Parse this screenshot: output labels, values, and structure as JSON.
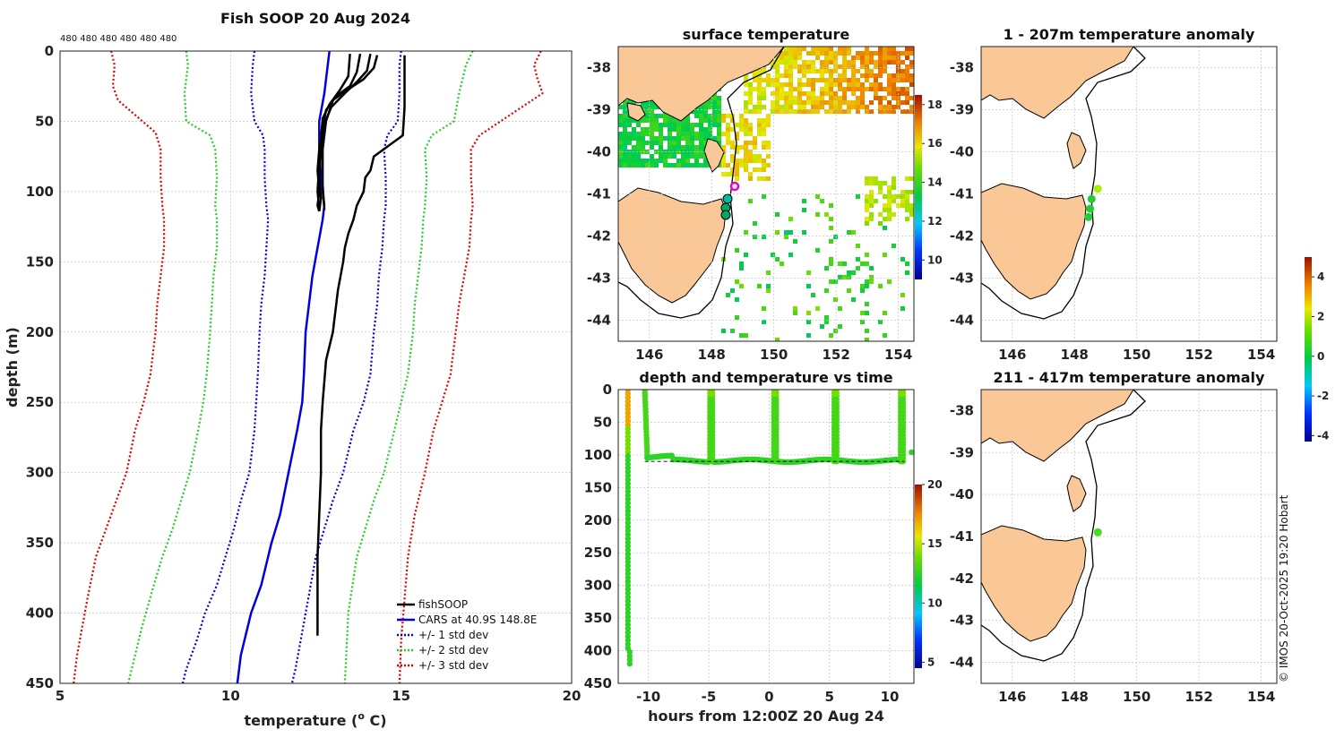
{
  "chart_data": [
    {
      "id": "profile",
      "type": "line",
      "title": "Fish SOOP 20 Aug 2024",
      "xlabel": "temperature (",
      "xlabel_sup": "o",
      "xlabel_tail": " C)",
      "ylabel": "depth (m)",
      "xlim": [
        5,
        20
      ],
      "ylim": [
        450,
        0
      ],
      "xticks": [
        "5",
        "10",
        "15",
        "20"
      ],
      "yticks": [
        "0",
        "50",
        "100",
        "150",
        "200",
        "250",
        "300",
        "350",
        "400",
        "450"
      ],
      "top_labels": "480 480 480 480 480 480",
      "legend": [
        "fishSOOP",
        "CARS at 40.9S 148.8E",
        "+/- 1 std dev",
        "+/- 2 std dev",
        "+/- 3 std dev"
      ],
      "series": [
        {
          "name": "CARS mean",
          "color": "#0000dd",
          "style": "solid",
          "x": [
            12.9,
            12.85,
            12.75,
            12.6,
            12.6,
            12.65,
            12.7,
            12.75,
            12.7,
            12.55,
            12.4,
            12.3,
            12.2,
            12.15,
            12.1,
            11.95,
            11.7,
            11.45,
            11.2,
            10.9,
            10.6,
            10.3,
            10.2
          ],
          "y": [
            0,
            10,
            30,
            50,
            70,
            90,
            100,
            110,
            120,
            140,
            160,
            180,
            200,
            230,
            250,
            270,
            300,
            330,
            350,
            380,
            400,
            430,
            450
          ]
        },
        {
          "name": "-1 std",
          "color": "#0000dd",
          "style": "dotted",
          "x": [
            10.7,
            10.65,
            10.6,
            10.7,
            10.95,
            11,
            11,
            11.05,
            11.1,
            11.05,
            11,
            10.9,
            10.85,
            10.8,
            10.75,
            10.7,
            10.55,
            10.3,
            10.1,
            9.85,
            9.6,
            9.25,
            9.0,
            8.7,
            8.6
          ],
          "y": [
            0,
            10,
            30,
            50,
            60,
            70,
            90,
            110,
            120,
            140,
            160,
            180,
            200,
            230,
            250,
            270,
            300,
            320,
            340,
            360,
            380,
            400,
            420,
            440,
            450
          ]
        },
        {
          "name": "+1 std",
          "color": "#0000dd",
          "style": "dotted",
          "x": [
            15.0,
            14.95,
            14.95,
            14.9,
            14.6,
            14.5,
            14.55,
            14.55,
            14.5,
            14.45,
            14.35,
            14.3,
            14.2,
            14.1,
            13.9,
            13.6,
            13.3,
            13.0,
            12.75,
            12.5,
            12.2,
            11.9,
            11.8
          ],
          "y": [
            0,
            10,
            30,
            50,
            60,
            70,
            90,
            110,
            120,
            140,
            160,
            180,
            200,
            230,
            250,
            270,
            300,
            320,
            340,
            360,
            400,
            440,
            450
          ]
        },
        {
          "name": "-2 std",
          "color": "#22cc22",
          "style": "dotted",
          "x": [
            8.7,
            8.75,
            8.65,
            8.7,
            9.4,
            9.55,
            9.6,
            9.55,
            9.6,
            9.6,
            9.5,
            9.45,
            9.4,
            9.3,
            9.2,
            9.05,
            8.8,
            8.55,
            8.3,
            8.0,
            7.75,
            7.4,
            7.1,
            7.0
          ],
          "y": [
            0,
            10,
            30,
            50,
            60,
            70,
            90,
            110,
            120,
            140,
            160,
            180,
            200,
            230,
            250,
            270,
            300,
            320,
            340,
            360,
            380,
            410,
            440,
            450
          ]
        },
        {
          "name": "+2 std",
          "color": "#22cc22",
          "style": "dotted",
          "x": [
            17.1,
            16.9,
            16.7,
            16.55,
            15.9,
            15.7,
            15.75,
            15.7,
            15.65,
            15.6,
            15.5,
            15.4,
            15.35,
            15.2,
            15.0,
            14.8,
            14.5,
            14.2,
            13.95,
            13.7,
            13.45,
            13.35
          ],
          "y": [
            0,
            10,
            30,
            50,
            60,
            70,
            90,
            110,
            120,
            140,
            160,
            180,
            200,
            230,
            250,
            270,
            300,
            320,
            340,
            360,
            400,
            450
          ]
        },
        {
          "name": "-3 std",
          "color": "#dd0000",
          "style": "dotted",
          "x": [
            6.5,
            6.6,
            6.55,
            6.7,
            7.8,
            7.95,
            7.95,
            8.0,
            8.05,
            8.05,
            7.95,
            7.85,
            7.8,
            7.65,
            7.45,
            7.2,
            6.95,
            6.65,
            6.35,
            6.05,
            5.8,
            5.5,
            5.4
          ],
          "y": [
            0,
            10,
            25,
            35,
            58,
            70,
            90,
            110,
            120,
            140,
            160,
            180,
            200,
            230,
            250,
            270,
            300,
            320,
            340,
            360,
            390,
            430,
            450
          ]
        },
        {
          "name": "+3 std",
          "color": "#dd0000",
          "style": "dotted",
          "x": [
            19.1,
            18.9,
            19.0,
            19.15,
            17.3,
            17.05,
            17.05,
            17.1,
            17.05,
            17.0,
            16.85,
            16.7,
            16.6,
            16.45,
            16.2,
            15.95,
            15.7,
            15.4,
            15.2,
            15.0,
            14.95
          ],
          "y": [
            0,
            10,
            20,
            30,
            60,
            70,
            90,
            110,
            120,
            140,
            160,
            180,
            200,
            230,
            250,
            270,
            300,
            330,
            360,
            420,
            450
          ]
        },
        {
          "name": "fishSOOP deep",
          "color": "#000000",
          "style": "solid",
          "x": [
            15.1,
            15.1,
            15.1,
            15.05,
            14.2,
            14.1,
            13.95,
            13.9,
            13.7,
            13.6,
            13.45,
            13.35,
            13.3,
            13.15,
            13.0,
            12.8,
            12.7,
            12.65,
            12.65,
            12.6,
            12.55,
            12.55,
            12.55,
            12.55,
            12.55
          ],
          "y": [
            3,
            20,
            40,
            60,
            75,
            85,
            90,
            100,
            110,
            120,
            130,
            140,
            150,
            170,
            200,
            220,
            250,
            270,
            300,
            330,
            360,
            380,
            400,
            410,
            416
          ]
        },
        {
          "name": "fishSOOP casts",
          "color": "#000000",
          "style": "solid",
          "x": [
            13.8,
            13.7,
            13.5,
            13.1,
            12.8,
            12.7,
            12.6,
            12.55,
            12.6,
            12.55,
            12.6
          ],
          "y": [
            2,
            15,
            25,
            32,
            42,
            55,
            70,
            85,
            100,
            110,
            114
          ]
        },
        {
          "name": "fishSOOP casts 2",
          "color": "#000000",
          "style": "solid",
          "x": [
            14.1,
            14.0,
            13.7,
            13.35,
            12.95,
            12.75,
            12.65,
            12.6,
            12.65,
            12.6
          ],
          "y": [
            2,
            14,
            22,
            30,
            40,
            52,
            70,
            90,
            105,
            114
          ]
        },
        {
          "name": "fishSOOP casts 3",
          "color": "#000000",
          "style": "solid",
          "x": [
            13.5,
            13.45,
            13.2,
            12.9,
            12.7,
            12.65,
            12.6,
            12.55,
            12.6
          ],
          "y": [
            2,
            18,
            28,
            38,
            48,
            62,
            80,
            100,
            112
          ]
        },
        {
          "name": "fishSOOP casts 4",
          "color": "#000000",
          "style": "solid",
          "x": [
            14.3,
            14.2,
            13.9,
            13.4,
            13.0,
            12.8,
            12.7,
            12.7,
            12.75
          ],
          "y": [
            3,
            12,
            20,
            28,
            35,
            50,
            70,
            95,
            113
          ]
        }
      ]
    },
    {
      "id": "sst",
      "type": "heatmap",
      "title": "surface temperature",
      "xlim": [
        145,
        154.5
      ],
      "ylim": [
        -44.5,
        -37.5
      ],
      "xticks": [
        "146",
        "148",
        "150",
        "152",
        "154"
      ],
      "yticks": [
        "-38",
        "-39",
        "-40",
        "-41",
        "-42",
        "-43",
        "-44"
      ],
      "colorbar_ticks": [
        "18",
        "16",
        "14",
        "12",
        "10"
      ],
      "colorbar_range": [
        9,
        18.5
      ]
    },
    {
      "id": "timeseries",
      "type": "scatter",
      "title": "depth and temperature vs time",
      "xlabel": "hours from 12:00Z 20 Aug 24",
      "xlim": [
        -12.5,
        12
      ],
      "ylim": [
        450,
        0
      ],
      "xticks": [
        "-10",
        "-5",
        "0",
        "5",
        "10"
      ],
      "yticks": [
        "0",
        "50",
        "100",
        "150",
        "200",
        "250",
        "300",
        "350",
        "400",
        "450"
      ],
      "colorbar_ticks": [
        "20",
        "15",
        "10",
        "5"
      ],
      "colorbar_range": [
        4.5,
        20
      ],
      "points_hours": [
        -11.7,
        -10.2,
        -4.8,
        0.5,
        5.5,
        11
      ],
      "points_depth": [
        420,
        110,
        110,
        112,
        112,
        110
      ]
    },
    {
      "id": "anom1",
      "type": "scatter",
      "title": "1 - 207m temperature anomaly",
      "xlim": [
        145,
        154.5
      ],
      "ylim": [
        -44.5,
        -37.5
      ],
      "xticks": [
        "146",
        "148",
        "150",
        "152",
        "154"
      ],
      "yticks": [
        "-38",
        "-39",
        "-40",
        "-41",
        "-42",
        "-43",
        "-44"
      ],
      "points": [
        {
          "lon": 148.75,
          "lat": -40.88
        },
        {
          "lon": 148.55,
          "lat": -41.12
        },
        {
          "lon": 148.5,
          "lat": -41.35
        },
        {
          "lon": 148.45,
          "lat": -41.55
        }
      ]
    },
    {
      "id": "anom2",
      "type": "scatter",
      "title": "211 - 417m temperature anomaly",
      "xlim": [
        145,
        154.5
      ],
      "ylim": [
        -44.5,
        -37.5
      ],
      "xticks": [
        "146",
        "148",
        "150",
        "152",
        "154"
      ],
      "yticks": [
        "-38",
        "-39",
        "-40",
        "-41",
        "-42",
        "-43",
        "-44"
      ],
      "colorbar_ticks": [
        "4",
        "2",
        "0",
        "-2",
        "-4"
      ],
      "colorbar_range": [
        -4.3,
        5
      ],
      "points": [
        {
          "lon": 148.75,
          "lat": -40.9
        }
      ]
    }
  ],
  "footer": "© IMOS 20-Oct-2025 19:20 Hobart"
}
